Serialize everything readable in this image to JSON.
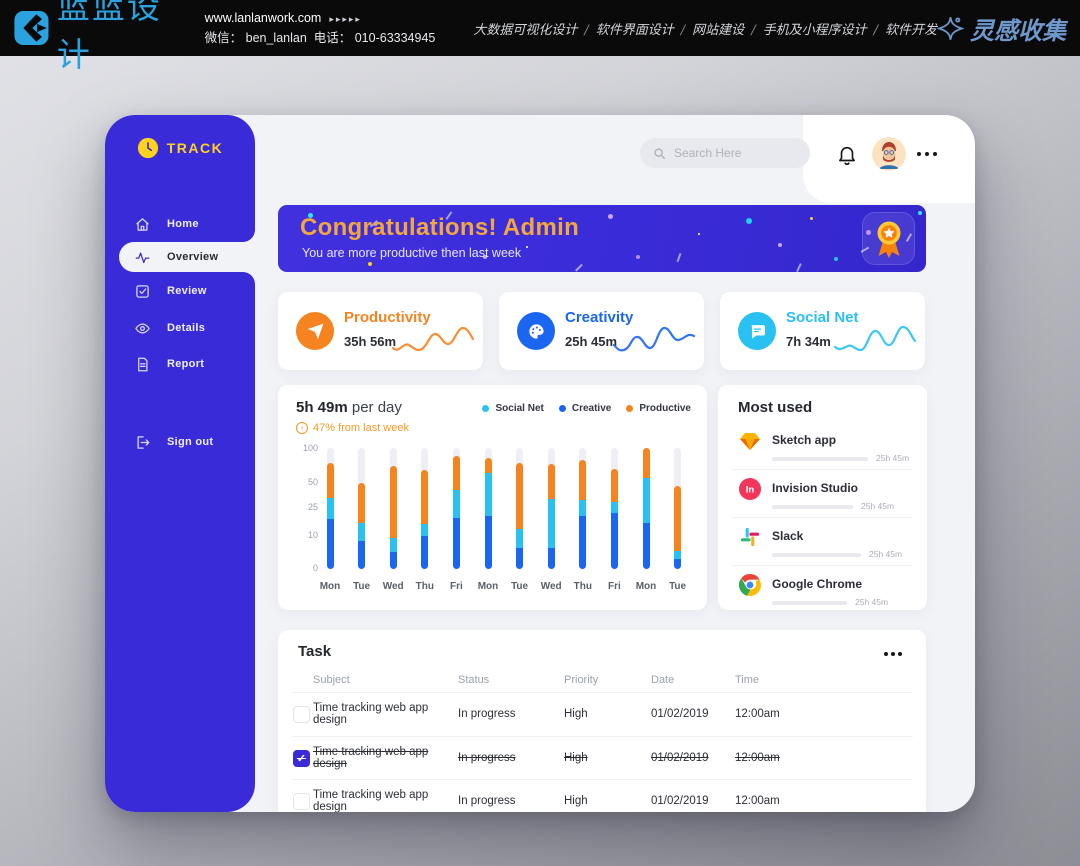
{
  "site_header": {
    "brand": "蓝蓝设计",
    "url": "www.lanlanwork.com",
    "url_arrows": "▸▸▸▸▸",
    "wechat": "微信： ben_lanlan",
    "phone": "电话： 010-63334945",
    "services": [
      "大数据可视化设计",
      "软件界面设计",
      "网站建设",
      "手机及小程序设计",
      "软件开发"
    ],
    "collect_brand": "灵感收集"
  },
  "app": {
    "logo_text": "TRACK",
    "nav": [
      {
        "label": "Home",
        "icon": "home-icon",
        "active": false
      },
      {
        "label": "Overview",
        "icon": "activity-icon",
        "active": true
      },
      {
        "label": "Review",
        "icon": "check-square-icon",
        "active": false
      },
      {
        "label": "Details",
        "icon": "eye-icon",
        "active": false
      },
      {
        "label": "Report",
        "icon": "file-icon",
        "active": false
      }
    ],
    "signout_label": "Sign out",
    "search_placeholder": "Search Here"
  },
  "banner": {
    "title": "Congratulations! Admin",
    "subtitle": "You are more productive then last week"
  },
  "stats": [
    {
      "name": "Productivity",
      "value": "35h 56m",
      "color": "#f5831f",
      "icon": "paper-plane-icon"
    },
    {
      "name": "Creativity",
      "value": "25h 45m",
      "color": "#1b66f0",
      "icon": "palette-icon"
    },
    {
      "name": "Social Net",
      "value": "7h 34m",
      "color": "#29c1f2",
      "icon": "chat-bubble-icon"
    }
  ],
  "chart_data": {
    "type": "bar",
    "stacked": true,
    "title_bold": "5h 49m",
    "title_rest": " per day",
    "delta_note": "47% from last week",
    "grid": false,
    "legend_position": "top-right",
    "y_ticks": [
      100,
      50,
      25,
      10,
      0
    ],
    "categories": [
      "Mon",
      "Tue",
      "Wed",
      "Thu",
      "Fri",
      "Mon",
      "Tue",
      "Wed",
      "Thu",
      "Fri",
      "Mon",
      "Tue"
    ],
    "series": [
      {
        "name": "Creative",
        "color": "#1b66f0",
        "values": [
          41,
          23,
          14,
          27,
          42,
          44,
          17,
          17,
          44,
          46,
          38,
          8
        ]
      },
      {
        "name": "Social Net",
        "color": "#29c1f2",
        "values": [
          18,
          15,
          12,
          10,
          23,
          35,
          16,
          41,
          13,
          9,
          37,
          7
        ]
      },
      {
        "name": "Productive",
        "color": "#f5831f",
        "values": [
          29,
          33,
          59,
          45,
          28,
          13,
          55,
          29,
          33,
          28,
          25,
          54
        ]
      }
    ],
    "legend": [
      {
        "name": "Social Net",
        "color": "#29c1f2"
      },
      {
        "name": "Creative",
        "color": "#1b66f0"
      },
      {
        "name": "Productive",
        "color": "#f5831f"
      }
    ],
    "units": "visual percent of bar track height (0-100)"
  },
  "most_used": {
    "title": "Most used",
    "apps": [
      {
        "name": "Sketch app",
        "time": "25h 45m",
        "icon": "sketch-icon",
        "progress": 0.64
      },
      {
        "name": "Invision Studio",
        "time": "25h 45m",
        "icon": "invision-icon",
        "progress": 0.54
      },
      {
        "name": "Slack",
        "time": "25h 45m",
        "icon": "slack-icon",
        "progress": 0.59
      },
      {
        "name": "Google Chrome",
        "time": "25h 45m",
        "icon": "chrome-icon",
        "progress": 0.5
      }
    ]
  },
  "task": {
    "title": "Task",
    "columns": [
      "Subject",
      "Status",
      "Priority",
      "Date",
      "Time"
    ],
    "rows": [
      {
        "subject": "Time tracking web app design",
        "status": "In progress",
        "priority": "High",
        "date": "01/02/2019",
        "time": "12:00am",
        "checked": false,
        "struck": false
      },
      {
        "subject": "Time tracking web app design",
        "status": "In progress",
        "priority": "High",
        "date": "01/02/2019",
        "time": "12:00am",
        "checked": true,
        "struck": true
      },
      {
        "subject": "Time tracking web app design",
        "status": "In progress",
        "priority": "High",
        "date": "01/02/2019",
        "time": "12:00am",
        "checked": false,
        "struck": false
      }
    ]
  },
  "colors": {
    "sidebar_blue": "#3a2bd8",
    "accent_orange": "#f5831f",
    "accent_blue": "#1b66f0",
    "accent_cyan": "#29c1f2",
    "brand_blue": "#2aa2df",
    "gold": "#ffd21e",
    "banner_title": "#f3a73c"
  }
}
